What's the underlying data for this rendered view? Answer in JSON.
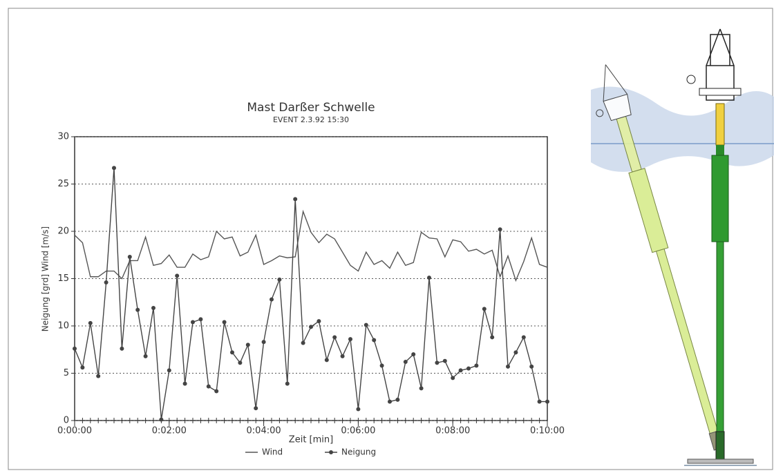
{
  "chart_data": {
    "type": "line",
    "title": "Mast Darßer Schwelle",
    "subtitle": "EVENT 2.3.92 15:30",
    "x_label": "Zeit [min]",
    "y_label": "Neigung [grd] Wind [m/s]",
    "x": [
      0,
      10,
      20,
      30,
      40,
      50,
      60,
      70,
      80,
      90,
      100,
      110,
      120,
      130,
      140,
      150,
      160,
      170,
      180,
      190,
      200,
      210,
      220,
      230,
      240,
      250,
      260,
      270,
      280,
      290,
      300,
      310,
      320,
      330,
      340,
      350,
      360,
      370,
      380,
      390,
      400,
      410,
      420,
      430,
      440,
      450,
      460,
      470,
      480,
      490,
      500,
      510,
      520,
      530,
      540,
      550,
      560,
      570,
      580,
      590,
      600
    ],
    "series": [
      {
        "name": "Wind",
        "color": "#555555",
        "marker": false,
        "values": [
          19.6,
          18.8,
          15.2,
          15.2,
          15.8,
          15.8,
          15.0,
          16.9,
          16.9,
          19.4,
          16.4,
          16.6,
          17.5,
          16.2,
          16.2,
          17.6,
          17.0,
          17.3,
          20.0,
          19.2,
          19.4,
          17.4,
          17.8,
          19.6,
          16.5,
          16.9,
          17.4,
          17.2,
          17.3,
          22.1,
          19.9,
          18.8,
          19.7,
          19.2,
          17.8,
          16.4,
          15.8,
          17.8,
          16.5,
          16.9,
          16.1,
          17.8,
          16.4,
          16.7,
          19.9,
          19.3,
          19.2,
          17.3,
          19.1,
          18.9,
          17.9,
          18.1,
          17.6,
          18.0,
          15.2,
          17.4,
          14.8,
          16.8,
          19.3,
          16.5,
          16.2
        ]
      },
      {
        "name": "Neigung",
        "color": "#444444",
        "marker": true,
        "values": [
          7.6,
          5.6,
          10.3,
          4.7,
          14.6,
          26.7,
          7.6,
          17.3,
          11.7,
          6.8,
          11.9,
          0.1,
          5.3,
          15.3,
          3.9,
          10.4,
          10.7,
          3.6,
          3.1,
          10.4,
          7.2,
          6.1,
          8.0,
          1.3,
          8.3,
          12.8,
          14.9,
          3.9,
          23.4,
          8.2,
          9.9,
          10.5,
          6.4,
          8.8,
          6.8,
          8.6,
          1.2,
          10.1,
          8.5,
          5.8,
          2.0,
          2.2,
          6.2,
          7.0,
          3.4,
          15.1,
          6.1,
          6.3,
          4.5,
          5.3,
          5.5,
          5.8,
          11.8,
          8.8,
          20.2,
          5.7,
          7.2,
          8.8,
          5.7,
          2.0,
          2.0
        ]
      }
    ],
    "xlim": [
      0,
      600
    ],
    "xticks": [
      {
        "value": 0,
        "label": "0:00:00"
      },
      {
        "value": 120,
        "label": "0:02:00"
      },
      {
        "value": 240,
        "label": "0:04:00"
      },
      {
        "value": 360,
        "label": "0:06:00"
      },
      {
        "value": 480,
        "label": "0:08:00"
      },
      {
        "value": 600,
        "label": "0:10:00"
      }
    ],
    "ylim": [
      0,
      30
    ],
    "yticks": [
      0,
      5,
      10,
      15,
      20,
      25,
      30
    ],
    "grid": true
  }
}
